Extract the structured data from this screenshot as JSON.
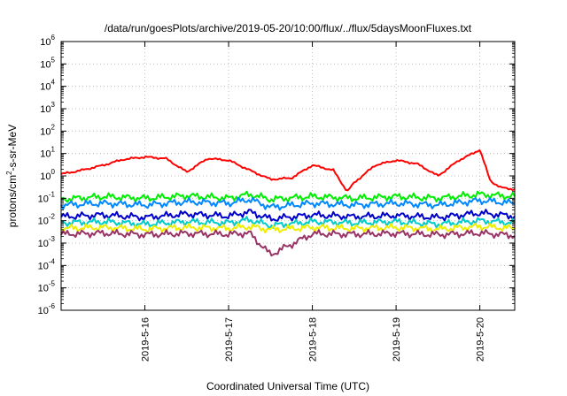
{
  "chart_data": {
    "type": "line",
    "title": "/data/run/goesPlots/archive/2019-05-20/10:00/flux/../flux/5daysMoonFluxes.txt",
    "xlabel": "Coordinated Universal Time (UTC)",
    "ylabel": "protons/cm²-s-sr-MeV",
    "ylabel_parts": [
      "protons/cm",
      "2",
      "-s-sr-MeV"
    ],
    "x_unit": "days",
    "xlim": [
      "2019-05-15 00:00",
      "2019-05-20 10:00"
    ],
    "x_ticks": [
      "2019-5-16",
      "2019-5-17",
      "2019-5-18",
      "2019-5-19",
      "2019-5-20"
    ],
    "y_scale": "log",
    "ylim": [
      1e-06,
      1000000.0
    ],
    "y_tick_exponents": [
      -6,
      -5,
      -4,
      -3,
      -2,
      -1,
      0,
      1,
      2,
      3,
      4,
      5,
      6
    ],
    "y_tick_base": "10",
    "grid": true,
    "series": [
      {
        "color": "#ff0000",
        "x": [
          "2019-05-15 00:00",
          "2019-05-15 06:00",
          "2019-05-15 12:00",
          "2019-05-15 18:00",
          "2019-05-16 00:00",
          "2019-05-16 06:00",
          "2019-05-16 12:00",
          "2019-05-16 18:00",
          "2019-05-17 00:00",
          "2019-05-17 06:00",
          "2019-05-17 12:00",
          "2019-05-17 18:00",
          "2019-05-18 00:00",
          "2019-05-18 06:00",
          "2019-05-18 08:00",
          "2019-05-18 10:00",
          "2019-05-18 12:00",
          "2019-05-18 18:00",
          "2019-05-19 00:00",
          "2019-05-19 06:00",
          "2019-05-19 12:00",
          "2019-05-19 18:00",
          "2019-05-19 22:00",
          "2019-05-20 00:00",
          "2019-05-20 03:00",
          "2019-05-20 06:00",
          "2019-05-20 10:00"
        ],
        "values": [
          1.2,
          1.8,
          3,
          5.5,
          7,
          6,
          1.5,
          6,
          5,
          1.8,
          0.7,
          0.8,
          3,
          1.8,
          0.6,
          0.2,
          0.5,
          3,
          5,
          3.5,
          1,
          5,
          10,
          15,
          0.6,
          0.3,
          0.25
        ]
      },
      {
        "color": "#00ee00",
        "x": [
          "2019-05-15 00:00",
          "2019-05-15 12:00",
          "2019-05-16 00:00",
          "2019-05-16 12:00",
          "2019-05-17 00:00",
          "2019-05-17 06:00",
          "2019-05-17 12:00",
          "2019-05-18 00:00",
          "2019-05-18 12:00",
          "2019-05-19 00:00",
          "2019-05-19 12:00",
          "2019-05-20 00:00",
          "2019-05-20 10:00"
        ],
        "values": [
          0.09,
          0.12,
          0.1,
          0.13,
          0.1,
          0.15,
          0.09,
          0.12,
          0.1,
          0.12,
          0.1,
          0.15,
          0.12
        ]
      },
      {
        "color": "#0088ff",
        "x": [
          "2019-05-15 00:00",
          "2019-05-15 12:00",
          "2019-05-16 00:00",
          "2019-05-16 12:00",
          "2019-05-17 00:00",
          "2019-05-17 06:00",
          "2019-05-17 12:00",
          "2019-05-18 00:00",
          "2019-05-18 12:00",
          "2019-05-19 00:00",
          "2019-05-19 12:00",
          "2019-05-20 00:00",
          "2019-05-20 10:00"
        ],
        "values": [
          0.05,
          0.06,
          0.05,
          0.07,
          0.06,
          0.09,
          0.04,
          0.06,
          0.05,
          0.06,
          0.05,
          0.08,
          0.06
        ]
      },
      {
        "color": "#0000cc",
        "x": [
          "2019-05-15 00:00",
          "2019-05-15 12:00",
          "2019-05-16 00:00",
          "2019-05-16 12:00",
          "2019-05-17 00:00",
          "2019-05-17 06:00",
          "2019-05-17 12:00",
          "2019-05-18 00:00",
          "2019-05-18 12:00",
          "2019-05-19 00:00",
          "2019-05-19 12:00",
          "2019-05-20 00:00",
          "2019-05-20 10:00"
        ],
        "values": [
          0.015,
          0.018,
          0.014,
          0.02,
          0.016,
          0.025,
          0.012,
          0.018,
          0.015,
          0.017,
          0.014,
          0.022,
          0.016
        ]
      },
      {
        "color": "#00cccc",
        "x": [
          "2019-05-15 00:00",
          "2019-05-15 12:00",
          "2019-05-16 00:00",
          "2019-05-16 12:00",
          "2019-05-17 00:00",
          "2019-05-17 06:00",
          "2019-05-17 12:00",
          "2019-05-18 00:00",
          "2019-05-18 12:00",
          "2019-05-19 00:00",
          "2019-05-19 12:00",
          "2019-05-20 00:00",
          "2019-05-20 10:00"
        ],
        "values": [
          0.008,
          0.009,
          0.007,
          0.009,
          0.008,
          0.011,
          0.006,
          0.009,
          0.008,
          0.009,
          0.007,
          0.01,
          0.008
        ]
      },
      {
        "color": "#eeee00",
        "x": [
          "2019-05-15 00:00",
          "2019-05-15 12:00",
          "2019-05-16 00:00",
          "2019-05-16 12:00",
          "2019-05-17 00:00",
          "2019-05-17 06:00",
          "2019-05-17 12:00",
          "2019-05-18 00:00",
          "2019-05-18 12:00",
          "2019-05-19 00:00",
          "2019-05-19 12:00",
          "2019-05-20 00:00",
          "2019-05-20 10:00"
        ],
        "values": [
          0.0045,
          0.005,
          0.0042,
          0.005,
          0.0045,
          0.0055,
          0.004,
          0.005,
          0.0045,
          0.005,
          0.0042,
          0.0055,
          0.0045
        ]
      },
      {
        "color": "#993366",
        "x": [
          "2019-05-15 00:00",
          "2019-05-15 12:00",
          "2019-05-16 00:00",
          "2019-05-16 12:00",
          "2019-05-17 00:00",
          "2019-05-17 06:00",
          "2019-05-17 12:00",
          "2019-05-18 00:00",
          "2019-05-18 12:00",
          "2019-05-19 00:00",
          "2019-05-19 12:00",
          "2019-05-20 00:00",
          "2019-05-20 10:00"
        ],
        "values": [
          0.0025,
          0.0028,
          0.0024,
          0.0027,
          0.0025,
          0.0028,
          0.0003,
          0.0026,
          0.0025,
          0.0027,
          0.0024,
          0.0028,
          0.0022
        ]
      }
    ]
  }
}
